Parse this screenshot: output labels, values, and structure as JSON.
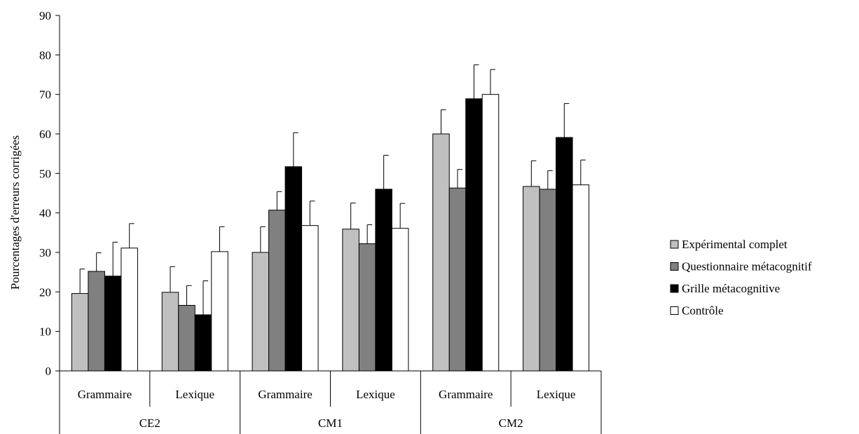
{
  "chart_data": {
    "type": "bar",
    "ylabel": "Pourcentages d'erreurs corrigées",
    "ylim": [
      0,
      90
    ],
    "yticks": [
      0,
      10,
      20,
      30,
      40,
      50,
      60,
      70,
      80,
      90
    ],
    "grid": false,
    "legend_position": "right",
    "groups": [
      "CE2",
      "CM1",
      "CM2"
    ],
    "categories": [
      "Grammaire",
      "Lexique",
      "Grammaire",
      "Lexique",
      "Grammaire",
      "Lexique"
    ],
    "series": [
      {
        "name": "Expérimental complet",
        "color": "#c0c0c0",
        "values": [
          19.6,
          19.9,
          30.0,
          35.9,
          60.0,
          46.7
        ],
        "errors": [
          6.2,
          6.5,
          6.5,
          6.6,
          6.1,
          6.5
        ]
      },
      {
        "name": "Questionnaire métacognitif",
        "color": "#808080",
        "values": [
          25.2,
          16.6,
          40.7,
          32.2,
          46.3,
          46.0
        ],
        "errors": [
          4.7,
          5.0,
          4.7,
          4.8,
          4.7,
          4.7
        ]
      },
      {
        "name": "Grille métacognitive",
        "color": "#000000",
        "values": [
          24.0,
          14.2,
          51.7,
          46.0,
          68.9,
          59.1
        ],
        "errors": [
          8.6,
          8.6,
          8.6,
          8.6,
          8.6,
          8.6
        ]
      },
      {
        "name": "Contrôle",
        "color": "#ffffff",
        "values": [
          31.1,
          30.2,
          36.8,
          36.1,
          70.0,
          47.1
        ],
        "errors": [
          6.2,
          6.3,
          6.2,
          6.3,
          6.3,
          6.3
        ]
      }
    ]
  }
}
